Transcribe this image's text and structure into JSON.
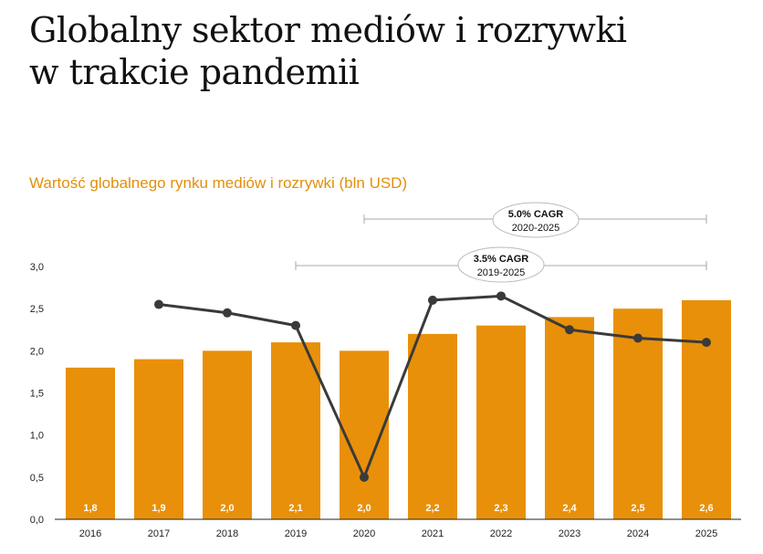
{
  "header": {
    "title_line1": "Globalny sektor mediów i rozrywki",
    "title_line2": "w trakcie pandemii",
    "subtitle": "Wartość globalnego rynku mediów i rozrywki (bln USD)"
  },
  "colors": {
    "bar": "#e8900a",
    "line": "#3a3a3a",
    "accent_text": "#e28f0c",
    "bracket": "#aaaaaa"
  },
  "annotations": [
    {
      "title": "5.0% CAGR",
      "period": "2020-2025",
      "from": "2020",
      "to": "2025"
    },
    {
      "title": "3.5% CAGR",
      "period": "2019-2025",
      "from": "2019",
      "to": "2025"
    }
  ],
  "chart_data": {
    "type": "bar",
    "categories": [
      "2016",
      "2017",
      "2018",
      "2019",
      "2020",
      "2021",
      "2022",
      "2023",
      "2024",
      "2025"
    ],
    "values": [
      1.8,
      1.9,
      2.0,
      2.1,
      2.0,
      2.2,
      2.3,
      2.4,
      2.5,
      2.6
    ],
    "value_labels": [
      "1,8",
      "1,9",
      "2,0",
      "2,1",
      "2,0",
      "2,2",
      "2,3",
      "2,4",
      "2,5",
      "2,6"
    ],
    "line_series": {
      "categories": [
        "2017",
        "2018",
        "2019",
        "2020",
        "2021",
        "2022",
        "2023",
        "2024",
        "2025"
      ],
      "values": [
        2.55,
        2.45,
        2.3,
        0.5,
        2.6,
        2.65,
        2.25,
        2.15,
        2.1
      ]
    },
    "y_ticks": [
      "0,0",
      "0,5",
      "1,0",
      "1,5",
      "2,0",
      "2,5",
      "3,0"
    ],
    "y_tick_values": [
      0,
      0.5,
      1.0,
      1.5,
      2.0,
      2.5,
      3.0
    ],
    "ylim": [
      0,
      3.0
    ],
    "grid": false,
    "title": "Wartość globalnego rynku mediów i rozrywki (bln USD)"
  }
}
